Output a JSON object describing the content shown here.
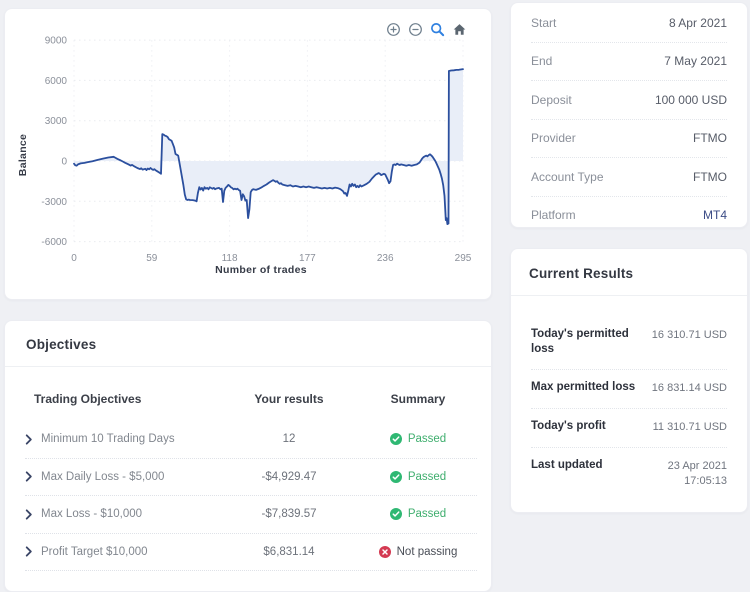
{
  "colors": {
    "page_bg": "#eff0f4",
    "card_bg": "#ffffff",
    "line": "#2b4f9e",
    "fill": "#e9eef8",
    "green": "#2fb873",
    "red": "#d43a52",
    "link_blue": "#3c4c86",
    "toolbar_active_blue": "#2f80e0"
  },
  "chart": {
    "toolbar_icons": [
      "zoom-in",
      "zoom-out",
      "selection-zoom",
      "reset-home"
    ]
  },
  "chart_data": {
    "type": "area",
    "title": "",
    "xlabel": "Number of trades",
    "ylabel": "Balance",
    "x_ticks": [
      0,
      59,
      118,
      177,
      236,
      295
    ],
    "y_ticks": [
      9000,
      6000,
      3000,
      0,
      -3000,
      -6000
    ],
    "xlim": [
      0,
      295
    ],
    "ylim": [
      -6000,
      9000
    ],
    "baseline": 0,
    "grid": "dotted",
    "legend": "none",
    "line_color": "#2b4f9e",
    "fill_color": "#e9eef8",
    "points": [
      [
        0,
        -200
      ],
      [
        1,
        -320
      ],
      [
        2,
        -350
      ],
      [
        3,
        -250
      ],
      [
        5,
        -180
      ],
      [
        8,
        -140
      ],
      [
        10,
        -100
      ],
      [
        14,
        -20
      ],
      [
        18,
        80
      ],
      [
        22,
        180
      ],
      [
        26,
        260
      ],
      [
        30,
        310
      ],
      [
        31,
        260
      ],
      [
        33,
        160
      ],
      [
        35,
        60
      ],
      [
        37,
        -40
      ],
      [
        39,
        -140
      ],
      [
        41,
        -240
      ],
      [
        43,
        -340
      ],
      [
        44,
        -290
      ],
      [
        46,
        -420
      ],
      [
        48,
        -520
      ],
      [
        50,
        -600
      ],
      [
        51,
        -540
      ],
      [
        52,
        -640
      ],
      [
        54,
        -580
      ],
      [
        55,
        -680
      ],
      [
        56,
        -560
      ],
      [
        57,
        -620
      ],
      [
        58,
        -520
      ],
      [
        59,
        -600
      ],
      [
        60,
        -660
      ],
      [
        61,
        -610
      ],
      [
        62,
        -700
      ],
      [
        63,
        -760
      ],
      [
        64,
        -820
      ],
      [
        65,
        -880
      ],
      [
        66,
        -950
      ],
      [
        67,
        2000
      ],
      [
        68,
        1960
      ],
      [
        69,
        1880
      ],
      [
        70,
        1850
      ],
      [
        71,
        1790
      ],
      [
        72,
        1620
      ],
      [
        73,
        1560
      ],
      [
        74,
        1500
      ],
      [
        75,
        1260
      ],
      [
        76,
        1000
      ],
      [
        77,
        520
      ],
      [
        78,
        460
      ],
      [
        79,
        400
      ],
      [
        80,
        -150
      ],
      [
        81,
        -700
      ],
      [
        82,
        -1250
      ],
      [
        83,
        -1800
      ],
      [
        84,
        -2500
      ],
      [
        85,
        -2850
      ],
      [
        86,
        -2900
      ],
      [
        87,
        -2870
      ],
      [
        88,
        -2900
      ],
      [
        90,
        -2910
      ],
      [
        92,
        -2950
      ],
      [
        93,
        -3000
      ],
      [
        94,
        -2380
      ],
      [
        95,
        -1950
      ],
      [
        96,
        -2120
      ],
      [
        97,
        -2000
      ],
      [
        98,
        -2200
      ],
      [
        99,
        -1950
      ],
      [
        100,
        -2060
      ],
      [
        101,
        -2000
      ],
      [
        102,
        -2110
      ],
      [
        103,
        -1960
      ],
      [
        104,
        -2010
      ],
      [
        105,
        -2060
      ],
      [
        106,
        -2000
      ],
      [
        107,
        -2100
      ],
      [
        108,
        -2050
      ],
      [
        110,
        -2000
      ],
      [
        111,
        -2110
      ],
      [
        112,
        -2060
      ],
      [
        113,
        -3050
      ],
      [
        114,
        -2220
      ],
      [
        115,
        -2000
      ],
      [
        116,
        -1900
      ],
      [
        117,
        -1780
      ],
      [
        118,
        -1850
      ],
      [
        119,
        -1960
      ],
      [
        120,
        -2010
      ],
      [
        121,
        -2110
      ],
      [
        122,
        -2060
      ],
      [
        123,
        -2110
      ],
      [
        124,
        -2060
      ],
      [
        125,
        -2160
      ],
      [
        126,
        -2220
      ],
      [
        127,
        -2900
      ],
      [
        128,
        -2480
      ],
      [
        129,
        -2620
      ],
      [
        130,
        -2950
      ],
      [
        131,
        -2900
      ],
      [
        132,
        -4250
      ],
      [
        133,
        -3600
      ],
      [
        134,
        -2320
      ],
      [
        135,
        -2160
      ],
      [
        136,
        -2100
      ],
      [
        138,
        -2150
      ],
      [
        140,
        -2080
      ],
      [
        142,
        -1980
      ],
      [
        144,
        -1850
      ],
      [
        146,
        -1750
      ],
      [
        148,
        -1600
      ],
      [
        150,
        -1480
      ],
      [
        151,
        -1420
      ],
      [
        152,
        -1480
      ],
      [
        153,
        -1550
      ],
      [
        154,
        -1500
      ],
      [
        155,
        -1620
      ],
      [
        156,
        -1700
      ],
      [
        157,
        -1650
      ],
      [
        158,
        -1750
      ],
      [
        160,
        -1800
      ],
      [
        162,
        -1850
      ],
      [
        164,
        -1800
      ],
      [
        166,
        -1900
      ],
      [
        168,
        -1850
      ],
      [
        170,
        -1900
      ],
      [
        172,
        -1950
      ],
      [
        174,
        -1900
      ],
      [
        176,
        -1950
      ],
      [
        178,
        -1900
      ],
      [
        180,
        -1950
      ],
      [
        182,
        -2000
      ],
      [
        184,
        -1950
      ],
      [
        186,
        -2000
      ],
      [
        188,
        -2050
      ],
      [
        190,
        -2000
      ],
      [
        192,
        -2050
      ],
      [
        194,
        -2000
      ],
      [
        196,
        -2050
      ],
      [
        198,
        -1980
      ],
      [
        200,
        -2020
      ],
      [
        202,
        -2100
      ],
      [
        204,
        -2250
      ],
      [
        205,
        -2420
      ],
      [
        206,
        -2380
      ],
      [
        207,
        -2600
      ],
      [
        208,
        -2200
      ],
      [
        209,
        -1750
      ],
      [
        210,
        -1900
      ],
      [
        211,
        -1700
      ],
      [
        212,
        -1850
      ],
      [
        213,
        -1750
      ],
      [
        214,
        -1950
      ],
      [
        215,
        -1850
      ],
      [
        216,
        -1950
      ],
      [
        217,
        -1800
      ],
      [
        218,
        -1900
      ],
      [
        220,
        -1800
      ],
      [
        222,
        -1700
      ],
      [
        224,
        -1550
      ],
      [
        226,
        -1300
      ],
      [
        228,
        -1100
      ],
      [
        229,
        -1000
      ],
      [
        230,
        -950
      ],
      [
        231,
        -900
      ],
      [
        232,
        -950
      ],
      [
        233,
        -1050
      ],
      [
        234,
        -1000
      ],
      [
        235,
        -950
      ],
      [
        236,
        -1000
      ],
      [
        237,
        -1200
      ],
      [
        238,
        -1400
      ],
      [
        239,
        -1650
      ],
      [
        240,
        -1500
      ],
      [
        241,
        -800
      ],
      [
        242,
        -300
      ],
      [
        243,
        -250
      ],
      [
        244,
        -300
      ],
      [
        245,
        -200
      ],
      [
        246,
        -250
      ],
      [
        247,
        -300
      ],
      [
        248,
        -250
      ],
      [
        250,
        -300
      ],
      [
        252,
        -350
      ],
      [
        254,
        -300
      ],
      [
        256,
        -350
      ],
      [
        258,
        -300
      ],
      [
        260,
        -250
      ],
      [
        262,
        -120
      ],
      [
        263,
        20
      ],
      [
        264,
        180
      ],
      [
        265,
        280
      ],
      [
        266,
        340
      ],
      [
        267,
        400
      ],
      [
        268,
        350
      ],
      [
        269,
        440
      ],
      [
        270,
        500
      ],
      [
        271,
        420
      ],
      [
        272,
        300
      ],
      [
        273,
        150
      ],
      [
        274,
        0
      ],
      [
        275,
        -200
      ],
      [
        276,
        -420
      ],
      [
        277,
        -650
      ],
      [
        278,
        -950
      ],
      [
        279,
        -1300
      ],
      [
        280,
        -1800
      ],
      [
        281,
        -2600
      ],
      [
        282,
        -4400
      ],
      [
        282.6,
        -4250
      ],
      [
        283.2,
        -4700
      ],
      [
        284,
        -4650
      ],
      [
        284.3,
        6700
      ],
      [
        286,
        6740
      ],
      [
        288,
        6750
      ],
      [
        290,
        6780
      ],
      [
        292,
        6790
      ],
      [
        295,
        6840
      ]
    ]
  },
  "account": {
    "rows": [
      {
        "label": "Start",
        "value": "8 Apr 2021",
        "accent": false
      },
      {
        "label": "End",
        "value": "7 May 2021",
        "accent": false
      },
      {
        "label": "Deposit",
        "value": "100 000 USD",
        "accent": false
      },
      {
        "label": "Provider",
        "value": "FTMO",
        "accent": false
      },
      {
        "label": "Account Type",
        "value": "FTMO",
        "accent": false
      },
      {
        "label": "Platform",
        "value": "MT4",
        "accent": true
      }
    ]
  },
  "current_results": {
    "title": "Current Results",
    "rows": [
      {
        "label": "Today's permitted loss",
        "value": "16 310.71 USD"
      },
      {
        "label": "Max permitted loss",
        "value": "16 831.14 USD"
      },
      {
        "label": "Today's profit",
        "value": "11 310.71 USD"
      },
      {
        "label": "Last updated",
        "value": "23 Apr 2021",
        "value2": "17:05:13"
      }
    ]
  },
  "objectives": {
    "title": "Objectives",
    "headers": [
      "Trading Objectives",
      "Your results",
      "Summary"
    ],
    "rows": [
      {
        "name": "Minimum 10 Trading Days",
        "result": "12",
        "status": "Passed",
        "passed": true
      },
      {
        "name": "Max Daily Loss - $5,000",
        "result": "-$4,929.47",
        "status": "Passed",
        "passed": true
      },
      {
        "name": "Max Loss - $10,000",
        "result": "-$7,839.57",
        "status": "Passed",
        "passed": true
      },
      {
        "name": "Profit Target $10,000",
        "result": "$6,831.14",
        "status": "Not passing",
        "passed": false
      }
    ]
  }
}
